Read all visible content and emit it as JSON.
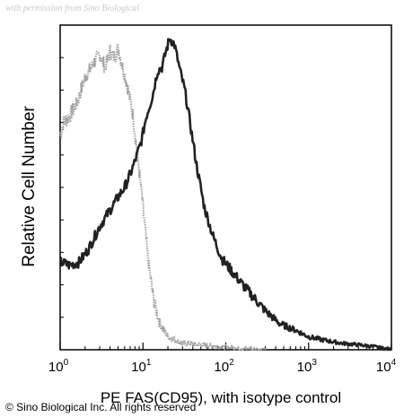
{
  "watermark": "with permission from Sino Biological",
  "copyright": "© Sino Biological Inc. All rights reserved",
  "chart_data": {
    "type": "line",
    "title": "",
    "xlabel": "PE FAS(CD95), with isotype control",
    "ylabel": "Relative Cell Number",
    "x_scale": "log",
    "xlim": [
      1,
      10000
    ],
    "ylim": [
      0,
      100
    ],
    "grid": false,
    "x_ticks": [
      {
        "base": "10",
        "exp": "0"
      },
      {
        "base": "10",
        "exp": "1"
      },
      {
        "base": "10",
        "exp": "2"
      },
      {
        "base": "10",
        "exp": "3"
      },
      {
        "base": "10",
        "exp": "4"
      }
    ],
    "series": [
      {
        "role": "isotype control",
        "color": "#a0a0a0",
        "x": [
          1.0,
          1.1,
          1.3,
          1.6,
          2.0,
          2.5,
          3.0,
          3.5,
          4.0,
          4.5,
          5.0,
          5.7,
          6.5,
          7.5,
          8.5,
          10,
          11.5,
          13.5,
          16,
          20,
          30,
          50,
          80,
          150,
          300
        ],
        "y": [
          66,
          70,
          72,
          76,
          84,
          88,
          91,
          87,
          92,
          90,
          93,
          87,
          81,
          73,
          61,
          44,
          28,
          15,
          8,
          4,
          2,
          1.5,
          1,
          0.5,
          0
        ]
      },
      {
        "role": "PE FAS(CD95)",
        "color": "#222222",
        "x": [
          1.0,
          1.3,
          1.7,
          2.2,
          3.0,
          4.0,
          5.0,
          6.0,
          7.0,
          8.0,
          9.5,
          11,
          13,
          15,
          17,
          19,
          21,
          24,
          28,
          32,
          37,
          45,
          55,
          70,
          90,
          120,
          160,
          220,
          300,
          450,
          700,
          1000,
          1500,
          2500,
          4000,
          6000,
          10000
        ],
        "y": [
          27,
          26,
          27,
          31,
          38,
          43,
          47,
          50,
          54,
          58,
          64,
          72,
          78,
          86,
          87,
          92,
          96,
          94,
          86,
          80,
          70,
          56,
          44,
          35,
          28,
          24,
          20,
          16,
          12,
          8,
          6,
          4,
          3,
          2,
          1.5,
          1,
          0
        ]
      }
    ]
  }
}
